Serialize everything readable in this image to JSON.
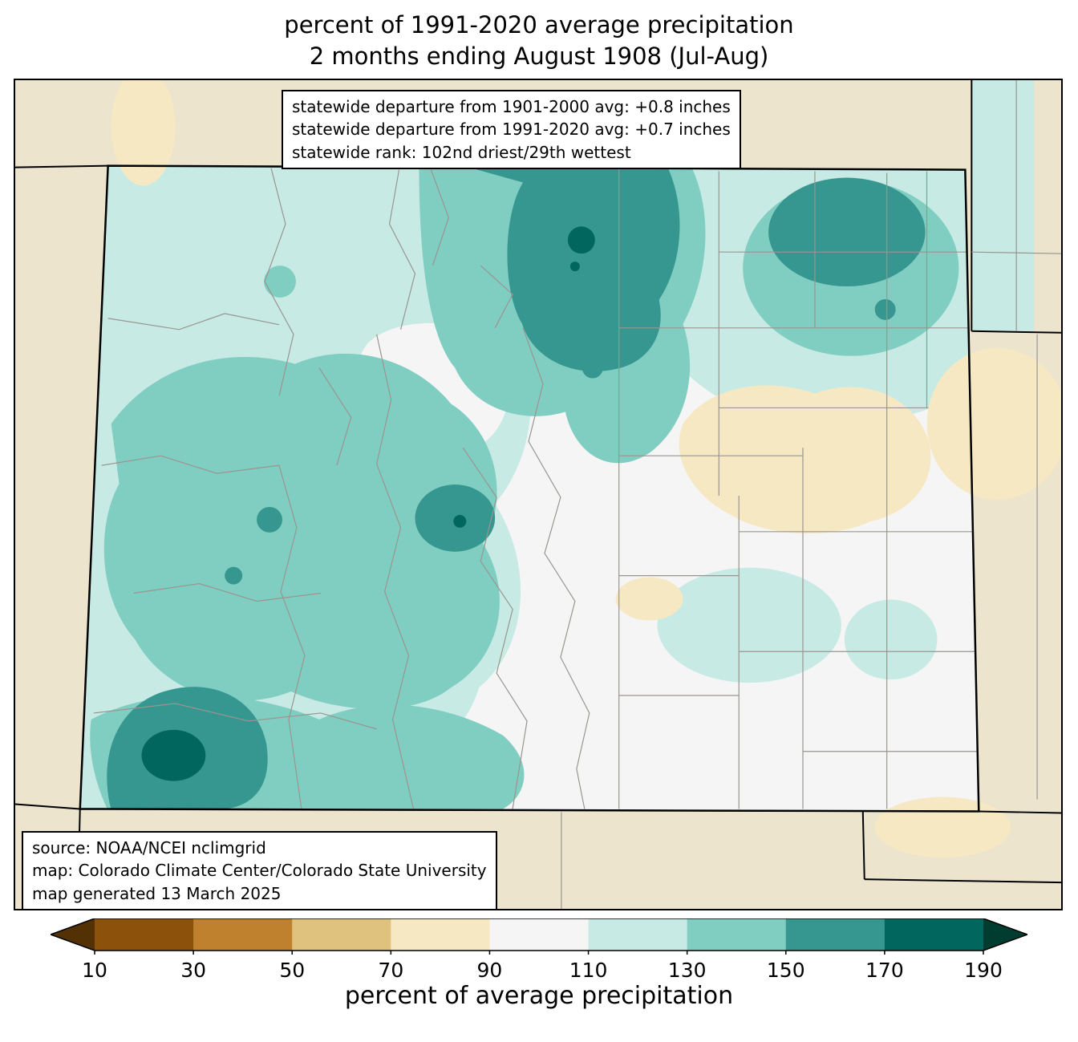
{
  "title": {
    "line1": "percent of 1991-2020 average precipitation",
    "line2": "2 months ending August 1908 (Jul-Aug)"
  },
  "stats_box": {
    "line1": "statewide departure from 1901-2000 avg: +0.8 inches",
    "line2": "statewide departure from 1991-2020 avg: +0.7 inches",
    "line3": "statewide rank: 102nd driest/29th wettest"
  },
  "source_box": {
    "line1": "source: NOAA/NCEI nclimgrid",
    "line2": "map: Colorado Climate Center/Colorado State University",
    "line3": "map generated 13 March 2025"
  },
  "colorbar": {
    "label": "percent of average precipitation",
    "tick_labels": [
      "10",
      "30",
      "50",
      "70",
      "90",
      "110",
      "130",
      "150",
      "170",
      "190"
    ],
    "segment_colors": [
      "#8c510a",
      "#bf812d",
      "#dfc27d",
      "#f6e8c3",
      "#f5f5f5",
      "#c7eae5",
      "#80cdc1",
      "#35978f",
      "#01665e"
    ],
    "under_arrow_color": "#543005",
    "over_arrow_color": "#003c30"
  },
  "map": {
    "region": "Colorado",
    "kind": "filled contour map of percent of average precipitation with county outlines",
    "colors": {
      "background_land": "#ece4cd",
      "state_border": "#000000",
      "county_border": "#999590",
      "bin_70_90": "#f6e8c3",
      "bin_90_110": "#f5f5f5",
      "bin_110_130": "#c7eae5",
      "bin_130_150": "#80cdc1",
      "bin_150_170": "#35978f",
      "bin_170_190": "#01665e"
    }
  }
}
